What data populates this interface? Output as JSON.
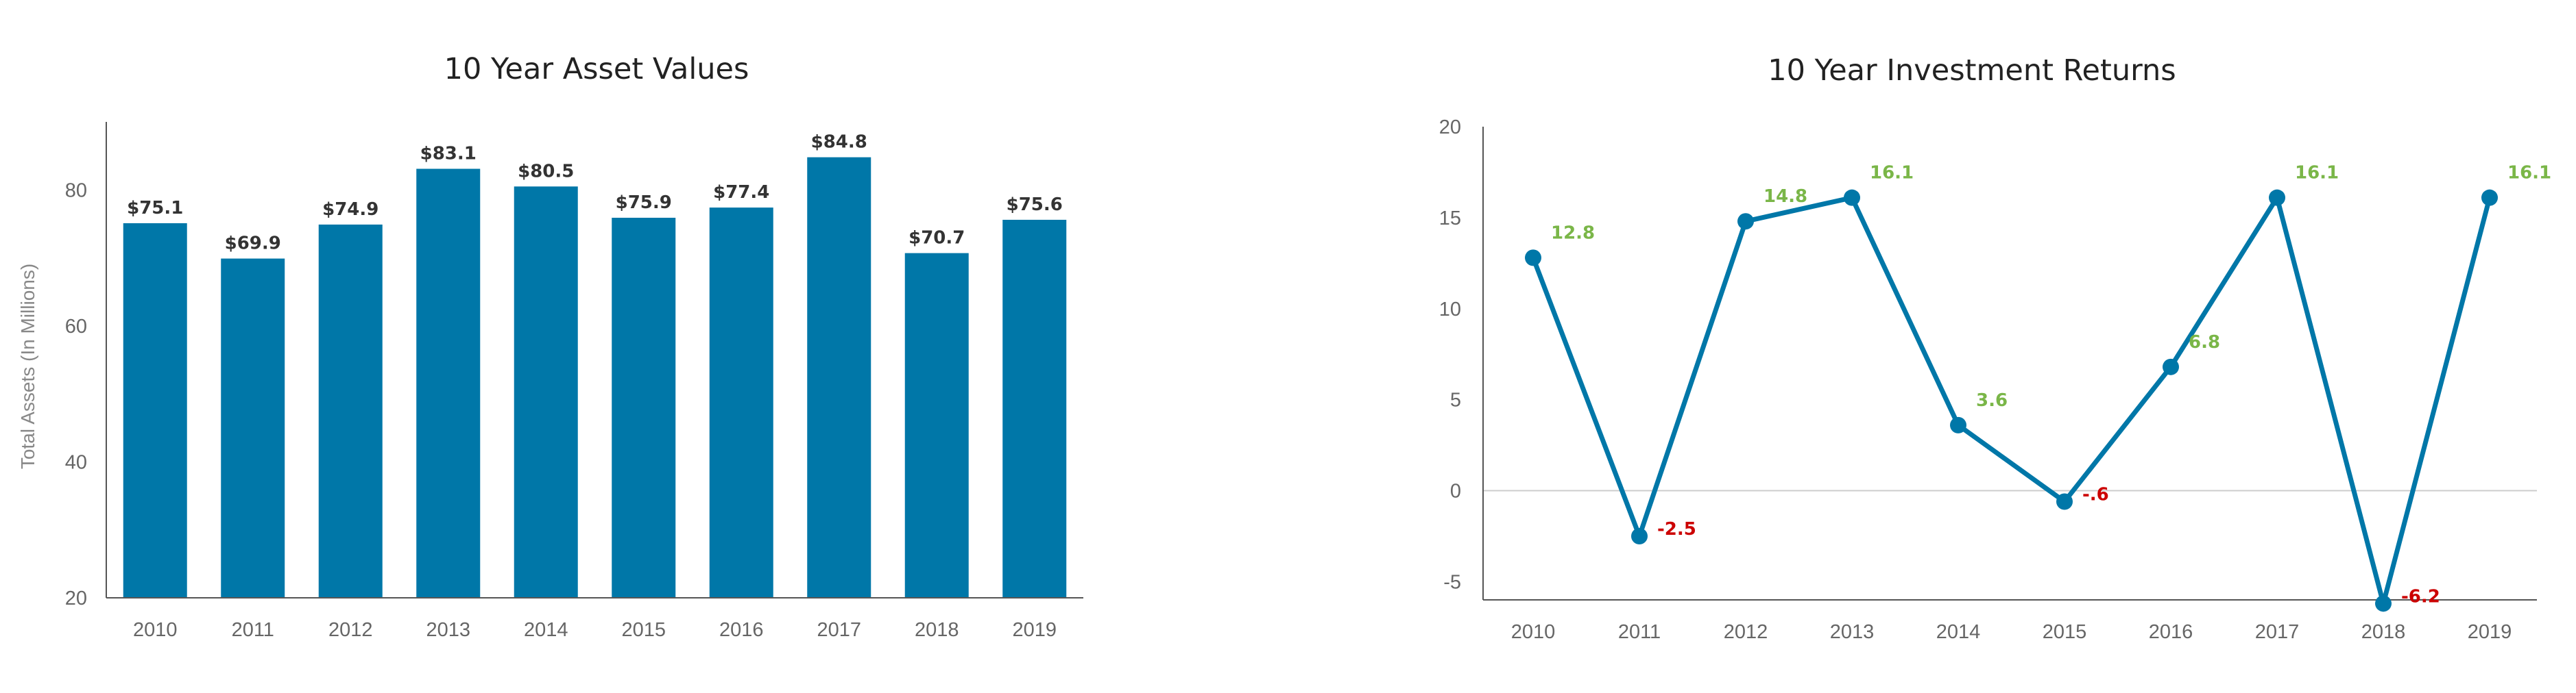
{
  "chart_data": [
    {
      "type": "bar",
      "title": "10 Year Asset Values",
      "xlabel": "",
      "ylabel": "Total Assets (In Millions)",
      "categories": [
        "2010",
        "2011",
        "2012",
        "2013",
        "2014",
        "2015",
        "2016",
        "2017",
        "2018",
        "2019"
      ],
      "values": [
        75.1,
        69.9,
        74.9,
        83.1,
        80.5,
        75.9,
        77.4,
        84.8,
        70.7,
        75.6
      ],
      "data_labels": [
        "$75.1",
        "$69.9",
        "$74.9",
        "$83.1",
        "$80.5",
        "$75.9",
        "$77.4",
        "$84.8",
        "$70.7",
        "$75.6"
      ],
      "ylim": [
        20,
        90
      ],
      "yticks": [
        "20",
        "40",
        "60",
        "80"
      ],
      "bar_color": "#0077a8",
      "label_color": "#333333",
      "grid": false
    },
    {
      "type": "line",
      "title": "10 Year Investment Returns",
      "xlabel": "",
      "ylabel": "",
      "categories": [
        "2010",
        "2011",
        "2012",
        "2013",
        "2014",
        "2015",
        "2016",
        "2017",
        "2018",
        "2019"
      ],
      "values": [
        12.8,
        -2.5,
        14.8,
        16.1,
        3.6,
        -0.6,
        6.8,
        16.1,
        -6.2,
        16.1
      ],
      "data_labels": [
        "12.8",
        "-2.5",
        "14.8",
        "16.1",
        "3.6",
        "-.6",
        "6.8",
        "16.1",
        "-6.2",
        "16.1"
      ],
      "ylim": [
        -6,
        20
      ],
      "yticks": [
        "-5",
        "0",
        "5",
        "10",
        "15",
        "20"
      ],
      "line_color": "#0077a8",
      "positive_label_color": "#7ab648",
      "negative_label_color": "#cc0000",
      "zero_line": true,
      "grid": false
    }
  ]
}
